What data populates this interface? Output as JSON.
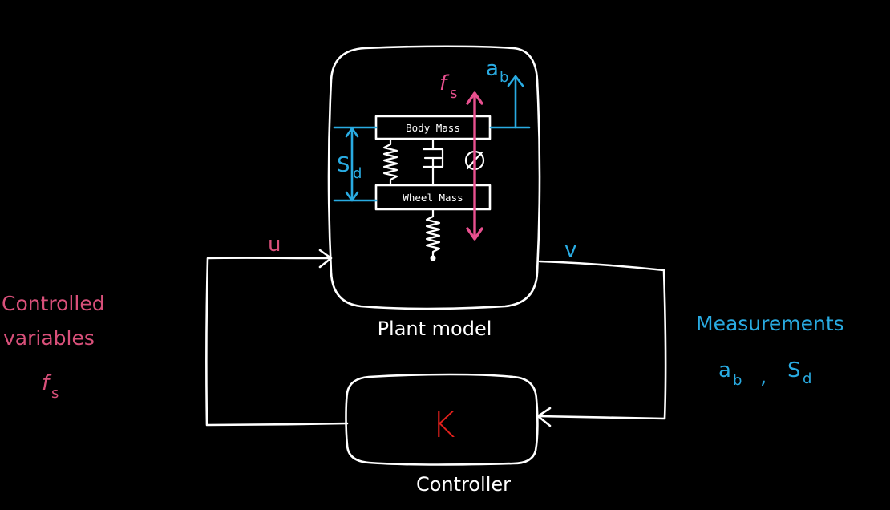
{
  "colors": {
    "background": "#000000",
    "ink": "#ffffff",
    "controlled": "#d9507a",
    "measured": "#29abe2",
    "force_arrow": "#e8508f",
    "controller_label": "#e0201c"
  },
  "plant": {
    "label": "Plant model",
    "body_mass_label": "Body Mass",
    "wheel_mass_label": "Wheel Mass",
    "force_symbol": "f",
    "force_subscript": "s",
    "accel_symbol": "a",
    "accel_subscript": "b",
    "deflection_symbol": "S",
    "deflection_subscript": "d"
  },
  "signals": {
    "input_label": "u",
    "output_label": "v"
  },
  "controller": {
    "symbol": "K",
    "label": "Controller"
  },
  "controlled_variables": {
    "line1": "Controlled",
    "line2": "variables",
    "symbol": "f",
    "subscript": "s"
  },
  "measurements": {
    "title": "Measurements",
    "a_symbol": "a",
    "a_subscript": "b",
    "separator": ",",
    "s_symbol": "S",
    "s_subscript": "d"
  }
}
